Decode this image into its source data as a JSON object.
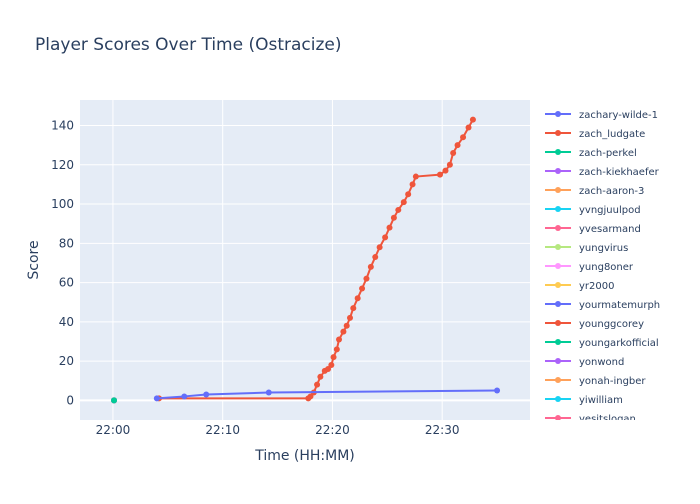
{
  "chart_data": {
    "type": "line",
    "title": "Player Scores Over Time (Ostracize)",
    "xlabel": "Time (HH:MM)",
    "ylabel": "Score",
    "xlim": [
      "21:57",
      "22:38"
    ],
    "ylim": [
      -10,
      153
    ],
    "x_ticks": [
      "22:00",
      "22:10",
      "22:20",
      "22:30"
    ],
    "y_ticks": [
      0,
      20,
      40,
      60,
      80,
      100,
      120,
      140
    ],
    "grid": true,
    "legend_position": "right",
    "series": [
      {
        "name": "zachary-wilde-1",
        "color": "#636efa",
        "points": [
          [
            "22:04",
            1
          ],
          [
            "22:06.5",
            2
          ],
          [
            "22:08.5",
            3
          ],
          [
            "22:14.2",
            4
          ],
          [
            "22:35",
            5
          ]
        ]
      },
      {
        "name": "zach_ludgate",
        "color": "#EF553B",
        "points": [
          [
            "22:04.2",
            1
          ],
          [
            "22:17.8",
            1
          ],
          [
            "22:18",
            2
          ],
          [
            "22:18.3",
            4
          ],
          [
            "22:18.6",
            8
          ],
          [
            "22:18.9",
            12
          ],
          [
            "22:19.3",
            15
          ],
          [
            "22:19.6",
            16
          ],
          [
            "22:19.9",
            18
          ],
          [
            "22:20.1",
            22
          ],
          [
            "22:20.4",
            26
          ],
          [
            "22:20.6",
            31
          ],
          [
            "22:21",
            35
          ],
          [
            "22:21.3",
            38
          ],
          [
            "22:21.6",
            42
          ],
          [
            "22:21.9",
            47
          ],
          [
            "22:22.3",
            52
          ],
          [
            "22:22.7",
            57
          ],
          [
            "22:23.1",
            62
          ],
          [
            "22:23.5",
            68
          ],
          [
            "22:23.9",
            73
          ],
          [
            "22:24.3",
            78
          ],
          [
            "22:24.8",
            83
          ],
          [
            "22:25.2",
            88
          ],
          [
            "22:25.6",
            93
          ],
          [
            "22:26",
            97
          ],
          [
            "22:26.5",
            101
          ],
          [
            "22:26.9",
            105
          ],
          [
            "22:27.3",
            110
          ],
          [
            "22:27.6",
            114
          ],
          [
            "22:29.8",
            115
          ],
          [
            "22:30.3",
            117
          ],
          [
            "22:30.7",
            120
          ],
          [
            "22:31",
            126
          ],
          [
            "22:31.4",
            130
          ],
          [
            "22:31.9",
            134
          ],
          [
            "22:32.4",
            139
          ],
          [
            "22:32.8",
            143
          ]
        ]
      },
      {
        "name": "zach-perkel",
        "color": "#00cc96",
        "points": [
          [
            "22:00.1",
            0
          ]
        ]
      },
      {
        "name": "zach-kiekhaefer",
        "color": "#ab63fa",
        "points": [
          [
            "22:00.1",
            0
          ]
        ]
      },
      {
        "name": "zach-aaron-3",
        "color": "#FFA15A",
        "points": [
          [
            "22:00.1",
            0
          ]
        ]
      },
      {
        "name": "yvngjuulpod",
        "color": "#19d3f3",
        "points": [
          [
            "22:00.1",
            0
          ]
        ]
      },
      {
        "name": "yvesarmand",
        "color": "#FF6692",
        "points": [
          [
            "22:00.1",
            0
          ]
        ]
      },
      {
        "name": "yungvirus",
        "color": "#B6E880",
        "points": [
          [
            "22:00.1",
            0
          ]
        ]
      },
      {
        "name": "yung8oner",
        "color": "#FF97FF",
        "points": [
          [
            "22:00.1",
            0
          ]
        ]
      },
      {
        "name": "yr2000",
        "color": "#FECB52",
        "points": [
          [
            "22:00.1",
            0
          ]
        ]
      },
      {
        "name": "yourmatemurph",
        "color": "#636efa",
        "points": [
          [
            "22:00.1",
            0
          ]
        ]
      },
      {
        "name": "younggcorey",
        "color": "#EF553B",
        "points": [
          [
            "22:00.1",
            0
          ]
        ]
      },
      {
        "name": "youngarkofficial",
        "color": "#00cc96",
        "points": [
          [
            "22:00.1",
            0
          ]
        ]
      },
      {
        "name": "yonwond",
        "color": "#ab63fa",
        "points": [
          [
            "22:00.1",
            0
          ]
        ]
      },
      {
        "name": "yonah-ingber",
        "color": "#FFA15A",
        "points": [
          [
            "22:00.1",
            0
          ]
        ]
      },
      {
        "name": "yiwilliam",
        "color": "#19d3f3",
        "points": [
          [
            "22:00.1",
            0
          ]
        ]
      },
      {
        "name": "yesitslogan",
        "color": "#FF6692",
        "points": [
          [
            "22:00.1",
            0
          ]
        ]
      }
    ]
  }
}
